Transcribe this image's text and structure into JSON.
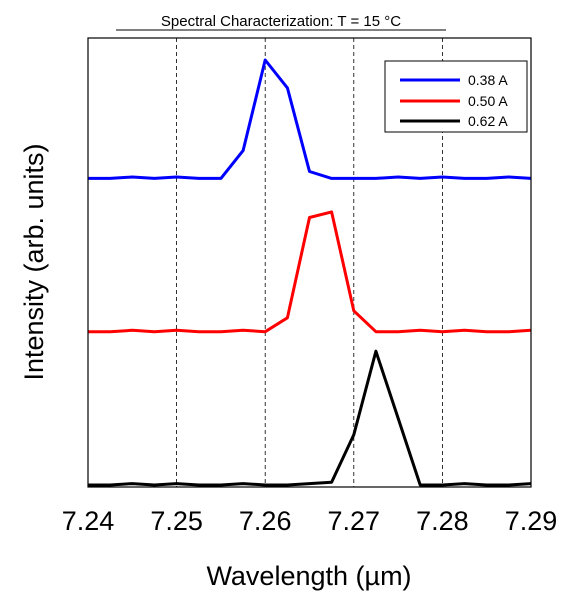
{
  "chart_data": {
    "type": "line",
    "title": "Spectral Characterization: T = 15 °C",
    "xlabel": "Wavelength (µm)",
    "ylabel": "Intensity (arb. units)",
    "xlim": [
      7.24,
      7.29
    ],
    "ylim": [
      0,
      3.05
    ],
    "x_ticks": [
      "7.24",
      "7.25",
      "7.26",
      "7.27",
      "7.28",
      "7.29"
    ],
    "x_tick_values": [
      7.24,
      7.25,
      7.26,
      7.27,
      7.28,
      7.29
    ],
    "grid": "vertical dashed at x ticks",
    "y_ticks": "none",
    "legend_position": "top-right",
    "series": [
      {
        "name": "0.38 A",
        "color": "#0000ff",
        "x": [
          7.24,
          7.2425,
          7.245,
          7.2475,
          7.25,
          7.2525,
          7.255,
          7.2575,
          7.26,
          7.2625,
          7.265,
          7.2675,
          7.27,
          7.2725,
          7.275,
          7.2775,
          7.28,
          7.2825,
          7.285,
          7.2875,
          7.29
        ],
        "y": [
          2.2,
          2.2,
          2.21,
          2.2,
          2.21,
          2.2,
          2.2,
          2.4,
          3.05,
          2.85,
          2.25,
          2.2,
          2.2,
          2.2,
          2.21,
          2.2,
          2.21,
          2.2,
          2.2,
          2.21,
          2.2
        ]
      },
      {
        "name": "0.50 A",
        "color": "#ff0000",
        "x": [
          7.24,
          7.2425,
          7.245,
          7.2475,
          7.25,
          7.2525,
          7.255,
          7.2575,
          7.26,
          7.2625,
          7.265,
          7.2675,
          7.27,
          7.2725,
          7.275,
          7.2775,
          7.28,
          7.2825,
          7.285,
          7.2875,
          7.29
        ],
        "y": [
          1.1,
          1.1,
          1.11,
          1.1,
          1.11,
          1.1,
          1.1,
          1.11,
          1.1,
          1.2,
          1.92,
          1.96,
          1.25,
          1.1,
          1.1,
          1.11,
          1.1,
          1.11,
          1.1,
          1.1,
          1.11
        ]
      },
      {
        "name": "0.62 A",
        "color": "#000000",
        "x": [
          7.24,
          7.2425,
          7.245,
          7.2475,
          7.25,
          7.2525,
          7.255,
          7.2575,
          7.26,
          7.2625,
          7.265,
          7.2675,
          7.27,
          7.2725,
          7.275,
          7.2775,
          7.28,
          7.2825,
          7.285,
          7.2875,
          7.29
        ],
        "y": [
          0.0,
          0.0,
          0.01,
          0.0,
          0.01,
          0.0,
          0.0,
          0.01,
          0.0,
          0.0,
          0.01,
          0.02,
          0.36,
          0.96,
          0.48,
          0.0,
          0.0,
          0.01,
          0.0,
          0.0,
          0.01
        ]
      }
    ]
  }
}
